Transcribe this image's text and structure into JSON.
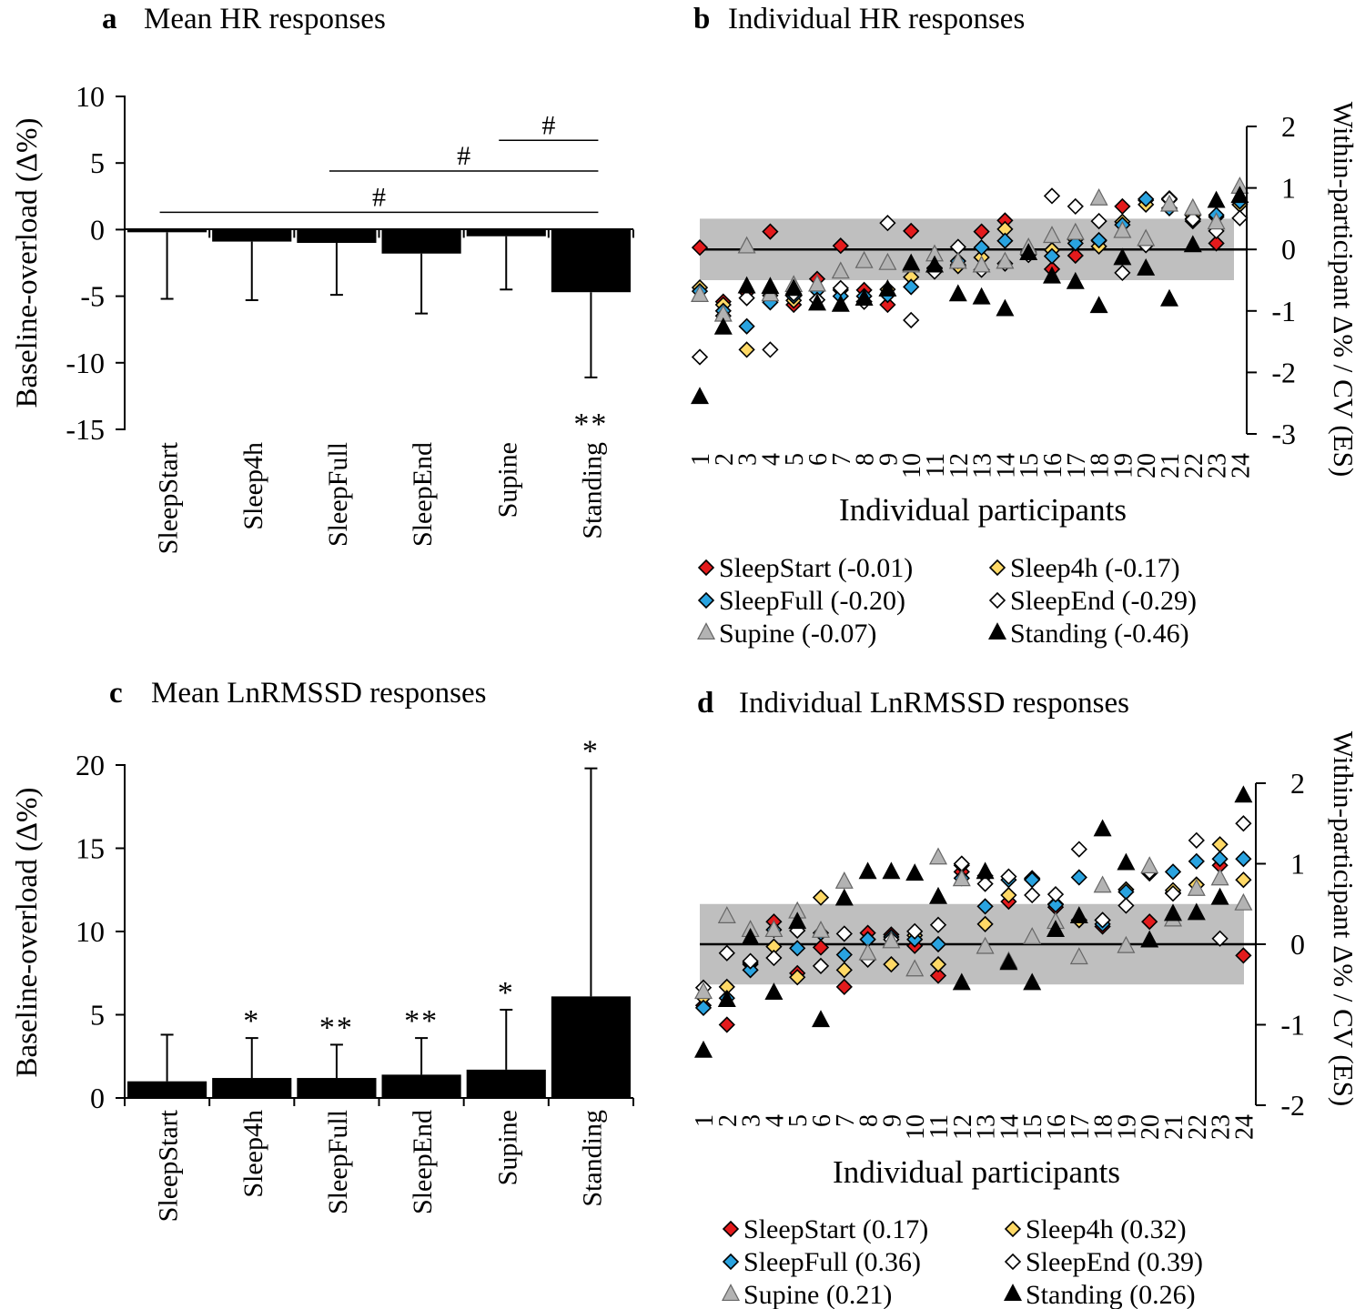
{
  "colors": {
    "sleepstart": "#e31a1c",
    "sleep4h": "#ffd966",
    "sleepfull": "#29a3e0",
    "sleepend": "#ffffff",
    "supine": "#b3b3b3",
    "standing": "#000000",
    "band": "#bfbfbf",
    "bar": "#000000"
  },
  "chart_data": [
    {
      "id": "a",
      "type": "bar",
      "panel_label": "a",
      "title": "Mean HR responses",
      "ylabel": "Baseline-overload (Δ%)",
      "ylim": [
        -15,
        10
      ],
      "yticks": [
        10,
        5,
        0,
        -5,
        -10,
        -15
      ],
      "ytick_labels": [
        "10",
        "5",
        "0",
        "-5",
        "-10",
        "-15"
      ],
      "categories": [
        "SleepStart",
        "Sleep4h",
        "SleepFull",
        "SleepEnd",
        "Supine",
        "Standing"
      ],
      "values": [
        -0.2,
        -0.9,
        -1.0,
        -1.8,
        -0.5,
        -4.7
      ],
      "errors": [
        5.0,
        4.4,
        3.9,
        4.5,
        4.0,
        6.4
      ],
      "error_direction": "down",
      "significance": [
        "",
        "",
        "",
        "",
        "",
        "**"
      ],
      "significance_position": "below",
      "comparisons": [
        {
          "from": 0,
          "to": 5,
          "y": 1.3,
          "label": "#"
        },
        {
          "from": 2,
          "to": 5,
          "y": 4.4,
          "label": "#"
        },
        {
          "from": 4,
          "to": 5,
          "y": 6.7,
          "label": "#"
        }
      ]
    },
    {
      "id": "c",
      "type": "bar",
      "panel_label": "c",
      "title": "Mean LnRMSSD responses",
      "ylabel": "Baseline-overload (Δ%)",
      "ylim": [
        0,
        20
      ],
      "yticks": [
        20,
        15,
        10,
        5,
        0
      ],
      "ytick_labels": [
        "20",
        "15",
        "10",
        "5",
        "0"
      ],
      "categories": [
        "SleepStart",
        "Sleep4h",
        "SleepFull",
        "SleepEnd",
        "Supine",
        "Standing"
      ],
      "values": [
        1.0,
        1.2,
        1.2,
        1.4,
        1.7,
        6.1
      ],
      "errors": [
        2.8,
        2.4,
        2.0,
        2.2,
        3.6,
        13.7
      ],
      "error_direction": "up",
      "significance": [
        "",
        "*",
        "**",
        "**",
        "*",
        "*"
      ],
      "significance_position": "above",
      "comparisons": []
    },
    {
      "id": "b",
      "type": "scatter",
      "panel_label": "b",
      "title": "Individual HR responses",
      "xlabel": "Individual participants",
      "ylabel": "Within-participant Δ% / CV (ES)",
      "ylim": [
        -3,
        2
      ],
      "yticks": [
        2,
        1,
        0,
        -1,
        -2,
        -3
      ],
      "ytick_labels": [
        "2",
        "1",
        "0",
        "-1",
        "-2",
        "-3"
      ],
      "x": [
        1,
        2,
        3,
        4,
        5,
        6,
        7,
        8,
        9,
        10,
        11,
        12,
        13,
        14,
        15,
        16,
        17,
        18,
        19,
        20,
        21,
        22,
        23,
        24
      ],
      "x_tick_labels": [
        "1",
        "2",
        "3",
        "4",
        "5",
        "6",
        "7",
        "8",
        "9",
        "10",
        "11",
        "12",
        "13",
        "14",
        "15",
        "16",
        "17",
        "18",
        "19",
        "20",
        "21",
        "22",
        "23",
        "24"
      ],
      "band": [
        -0.5,
        0.5
      ],
      "series": [
        {
          "name": "SleepStart",
          "legend": "SleepStart (-0.01)",
          "marker": "diamond",
          "color_key": "sleepstart",
          "values": [
            0.03,
            -0.85,
            -0.7,
            0.29,
            -0.9,
            -0.48,
            0.06,
            -0.66,
            -0.9,
            0.3,
            -0.3,
            -0.25,
            0.29,
            0.47,
            -0.05,
            -0.32,
            -0.1,
            0.14,
            0.7,
            0.8,
            0.83,
            0.46,
            0.1,
            0.73
          ]
        },
        {
          "name": "Sleep4h",
          "legend": "Sleep4h (-0.17)",
          "marker": "diamond",
          "color_key": "sleep4h",
          "values": [
            -0.62,
            -0.9,
            -1.63,
            -0.75,
            -0.83,
            -0.82,
            -0.66,
            -0.85,
            -0.65,
            -0.45,
            -0.35,
            -0.27,
            -0.13,
            0.33,
            -0.05,
            -0.01,
            0.16,
            0.05,
            0.45,
            0.73,
            0.81,
            0.55,
            0.53,
            0.73
          ]
        },
        {
          "name": "SleepFull",
          "legend": "SleepFull (-0.20)",
          "marker": "diamond",
          "color_key": "sleepfull",
          "values": [
            -0.68,
            -1.0,
            -1.25,
            -0.86,
            -0.76,
            -0.67,
            -0.76,
            -0.76,
            -0.74,
            -0.61,
            -0.31,
            -0.19,
            0.03,
            0.14,
            -0.04,
            -0.11,
            0.1,
            0.15,
            0.4,
            0.82,
            0.67,
            0.5,
            0.56,
            0.78
          ]
        },
        {
          "name": "SleepEnd",
          "legend": "SleepEnd (-0.29)",
          "marker": "diamond",
          "color_key": "sleepend",
          "values": [
            -1.75,
            -1.08,
            -0.79,
            -1.63,
            -0.72,
            -0.82,
            -0.63,
            -0.85,
            0.43,
            -1.15,
            -0.36,
            0.04,
            -0.33,
            -0.23,
            -0.09,
            0.87,
            0.7,
            0.46,
            -0.38,
            0.07,
            0.82,
            0.49,
            0.3,
            0.51
          ]
        },
        {
          "name": "Supine",
          "legend": "Supine (-0.07)",
          "marker": "triangle",
          "color_key": "supine",
          "values": [
            -0.75,
            -1.07,
            0.04,
            -0.74,
            -0.59,
            -0.58,
            -0.37,
            -0.2,
            -0.23,
            -0.27,
            -0.09,
            -0.21,
            -0.27,
            -0.21,
            0.02,
            0.21,
            0.26,
            0.82,
            0.29,
            0.16,
            0.72,
            0.66,
            0.43,
            1.01
          ]
        },
        {
          "name": "Standing",
          "legend": "Standing (-0.46)",
          "marker": "triangle",
          "color_key": "standing",
          "values": [
            -2.41,
            -1.28,
            -0.61,
            -0.62,
            -0.65,
            -0.89,
            -0.91,
            -0.81,
            -0.66,
            -0.24,
            -0.27,
            -0.74,
            -0.79,
            -0.98,
            -0.07,
            -0.45,
            -0.54,
            -0.93,
            -0.15,
            -0.32,
            -0.82,
            0.06,
            0.78,
            0.86
          ]
        }
      ]
    },
    {
      "id": "d",
      "type": "scatter",
      "panel_label": "d",
      "title": "Individual LnRMSSD responses",
      "xlabel": "Individual participants",
      "ylabel": "Within-participant Δ% / CV (ES)",
      "ylim": [
        -2,
        2
      ],
      "yticks": [
        2,
        1,
        0,
        -1,
        -2
      ],
      "ytick_labels": [
        "2",
        "1",
        "0",
        "-1",
        "-2"
      ],
      "x": [
        1,
        2,
        3,
        4,
        5,
        6,
        7,
        8,
        9,
        10,
        11,
        12,
        13,
        14,
        15,
        16,
        17,
        18,
        19,
        20,
        21,
        22,
        23,
        24
      ],
      "x_tick_labels": [
        "1",
        "2",
        "3",
        "4",
        "5",
        "6",
        "7",
        "8",
        "9",
        "10",
        "11",
        "12",
        "13",
        "14",
        "15",
        "16",
        "17",
        "18",
        "19",
        "20",
        "21",
        "22",
        "23",
        "24"
      ],
      "band": [
        -0.5,
        0.5
      ],
      "series": [
        {
          "name": "SleepStart",
          "legend": "SleepStart (0.17)",
          "marker": "diamond",
          "color_key": "sleepstart",
          "values": [
            -0.76,
            -1.0,
            -0.25,
            0.28,
            -0.36,
            -0.04,
            -0.53,
            0.14,
            0.12,
            -0.02,
            -0.39,
            0.9,
            0.85,
            0.53,
            0.81,
            0.46,
            0.3,
            0.22,
            0.68,
            0.28,
            0.64,
            0.74,
            0.98,
            -0.14
          ]
        },
        {
          "name": "Sleep4h",
          "legend": "Sleep4h (0.32)",
          "marker": "diamond",
          "color_key": "sleep4h",
          "values": [
            -0.66,
            -0.53,
            -0.23,
            -0.03,
            -0.41,
            0.58,
            -0.32,
            0.06,
            -0.25,
            0.11,
            -0.25,
            0.98,
            0.25,
            0.61,
            0.82,
            0.5,
            0.3,
            0.3,
            0.68,
            0.88,
            0.67,
            0.74,
            1.24,
            0.8
          ]
        },
        {
          "name": "SleepFull",
          "legend": "SleepFull (0.36)",
          "marker": "diamond",
          "color_key": "sleepfull",
          "values": [
            -0.79,
            -0.67,
            -0.32,
            0.18,
            -0.05,
            0.14,
            -0.13,
            0.06,
            0.09,
            0.06,
            0.0,
            0.82,
            0.47,
            0.8,
            0.8,
            0.49,
            0.83,
            0.25,
            0.65,
            0.89,
            0.9,
            1.03,
            1.06,
            1.06
          ]
        },
        {
          "name": "SleepEnd",
          "legend": "SleepEnd (0.39)",
          "marker": "diamond",
          "color_key": "sleepend",
          "values": [
            -0.54,
            -0.11,
            -0.21,
            -0.17,
            0.17,
            -0.27,
            0.13,
            -0.19,
            0.06,
            0.16,
            0.24,
            1.0,
            0.75,
            0.84,
            0.61,
            0.62,
            1.18,
            0.3,
            0.48,
            0.9,
            0.63,
            1.29,
            0.07,
            1.5
          ]
        },
        {
          "name": "Supine",
          "legend": "Supine (0.21)",
          "marker": "triangle",
          "color_key": "supine",
          "values": [
            -0.6,
            0.34,
            0.17,
            0.17,
            0.4,
            0.16,
            0.77,
            -0.12,
            0.03,
            -0.32,
            1.07,
            0.8,
            -0.04,
            -0.22,
            0.08,
            0.27,
            -0.17,
            0.72,
            -0.03,
            0.96,
            0.3,
            0.68,
            0.81,
            0.5
          ]
        },
        {
          "name": "Standing",
          "legend": "Standing (0.26)",
          "marker": "triangle",
          "color_key": "standing",
          "values": [
            -1.33,
            -0.7,
            0.07,
            -0.61,
            0.27,
            -0.95,
            0.56,
            0.89,
            0.89,
            0.87,
            0.58,
            -0.49,
            0.89,
            -0.24,
            -0.49,
            0.17,
            0.34,
            1.42,
            1.0,
            0.04,
            0.37,
            0.38,
            0.57,
            1.84
          ]
        }
      ]
    }
  ]
}
